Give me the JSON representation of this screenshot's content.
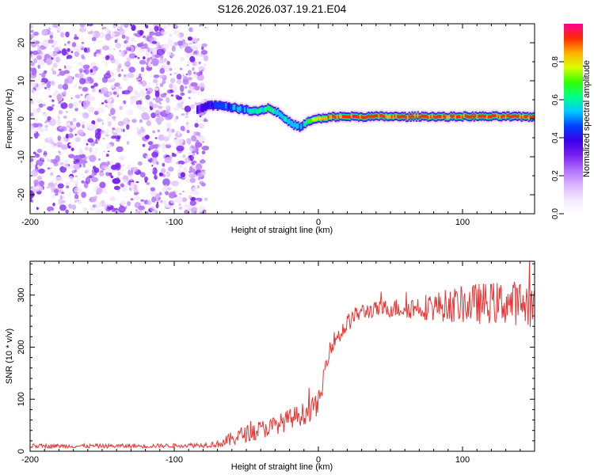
{
  "title": "S126.2026.037.19.21.E04",
  "colors": {
    "background": "#ffffff",
    "snr_line": "#ee3333",
    "noise_dots": "#7b2fe8",
    "colormap": [
      "#ffffff",
      "#f3e6ff",
      "#d9b3ff",
      "#b070ff",
      "#7a20f0",
      "#3a00e6",
      "#0040ff",
      "#00ccff",
      "#00ff88",
      "#30ff00",
      "#d8ff00",
      "#ffb000",
      "#ff2a00",
      "#ff0090"
    ]
  },
  "chart_data": [
    {
      "id": "spectrogram",
      "type": "heatmap",
      "xlabel": "Height of straight line (km)",
      "ylabel": "Frequency (Hz)",
      "xlim": [
        -200,
        150
      ],
      "ylim": [
        -25,
        25
      ],
      "xticks": [
        -200,
        -100,
        0,
        100
      ],
      "yticks": [
        -20,
        -10,
        0,
        10,
        20
      ],
      "noise_region": {
        "x_range": [
          -200,
          -78
        ],
        "y_range": [
          -25,
          25
        ]
      },
      "signal_onset_km": -84,
      "ridge": {
        "x": [
          -84,
          -75,
          -65,
          -55,
          -48,
          -42,
          -35,
          -28,
          -22,
          -17,
          -12,
          -9,
          -5,
          0,
          5,
          10,
          20,
          30,
          40,
          50,
          60,
          70,
          80,
          90,
          100,
          110,
          120,
          130,
          140,
          150
        ],
        "freq": [
          2.6,
          3.6,
          3.4,
          2.6,
          2.2,
          2.0,
          2.8,
          1.6,
          -0.4,
          -1.6,
          -2.2,
          -1.2,
          -0.4,
          0.0,
          0.1,
          0.5,
          0.6,
          0.5,
          0.6,
          0.6,
          0.5,
          0.6,
          0.6,
          0.5,
          0.6,
          0.6,
          0.6,
          0.6,
          0.5,
          0.5
        ],
        "amplitude": [
          0.32,
          0.42,
          0.46,
          0.5,
          0.55,
          0.6,
          0.62,
          0.6,
          0.55,
          0.52,
          0.5,
          0.6,
          0.7,
          0.8,
          0.84,
          0.88,
          0.92,
          0.92,
          0.9,
          0.9,
          0.92,
          0.9,
          0.92,
          0.9,
          0.92,
          0.92,
          0.9,
          0.92,
          0.92,
          0.9
        ]
      },
      "colorbar": {
        "label": "Normalized spectral amplitude",
        "ticks": [
          0.0,
          0.2,
          0.4,
          0.6,
          0.8
        ],
        "range": [
          0,
          1
        ]
      }
    },
    {
      "id": "snr",
      "type": "line",
      "xlabel": "Height of straight line (km)",
      "ylabel": "SNR (10 * v/v)",
      "xlim": [
        -200,
        150
      ],
      "ylim": [
        0,
        365
      ],
      "xticks": [
        -200,
        -100,
        0,
        100
      ],
      "yticks": [
        0,
        100,
        200,
        300
      ],
      "series": [
        {
          "name": "SNR",
          "x": [
            -200,
            -180,
            -160,
            -140,
            -120,
            -100,
            -80,
            -70,
            -64,
            -60,
            -55,
            -50,
            -45,
            -40,
            -35,
            -30,
            -25,
            -20,
            -15,
            -10,
            -5,
            0,
            2,
            4,
            6,
            8,
            10,
            15,
            20,
            25,
            30,
            40,
            50,
            60,
            70,
            80,
            90,
            100,
            110,
            120,
            130,
            140,
            150
          ],
          "y": [
            10,
            10,
            10,
            10,
            10,
            11,
            12,
            14,
            18,
            24,
            30,
            34,
            38,
            42,
            45,
            50,
            55,
            62,
            68,
            72,
            80,
            92,
            110,
            150,
            180,
            200,
            210,
            225,
            245,
            260,
            268,
            272,
            275,
            275,
            277,
            278,
            280,
            282,
            283,
            285,
            285,
            285,
            280
          ],
          "noise_amplitude": [
            4,
            4,
            4,
            4,
            4,
            4,
            5,
            7,
            12,
            14,
            16,
            16,
            18,
            18,
            18,
            18,
            20,
            20,
            20,
            22,
            22,
            22,
            20,
            20,
            18,
            18,
            18,
            18,
            18,
            16,
            16,
            16,
            18,
            20,
            24,
            28,
            32,
            36,
            40,
            40,
            42,
            44,
            44
          ]
        }
      ]
    }
  ]
}
